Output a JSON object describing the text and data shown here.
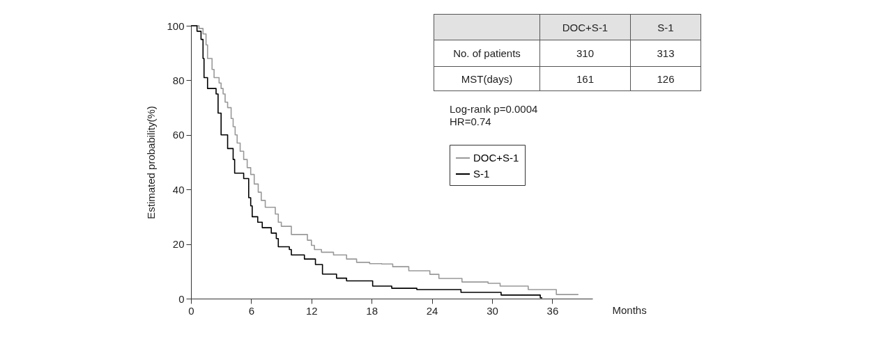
{
  "chart_data": {
    "type": "step",
    "xlabel": "Months",
    "ylabel": "Estimated probability(%)",
    "xlim": [
      0,
      40
    ],
    "ylim": [
      0,
      100
    ],
    "xticks": [
      0,
      6,
      12,
      18,
      24,
      30,
      36
    ],
    "yticks": [
      0,
      20,
      40,
      60,
      80,
      100
    ],
    "grid": false,
    "legend": "right",
    "series": [
      {
        "name": "DOC+S-1",
        "color": "#999999",
        "x": [
          0,
          0.8,
          1.2,
          1.5,
          1.65,
          2.1,
          2.3,
          2.8,
          3.0,
          3.2,
          3.4,
          3.65,
          4.0,
          4.2,
          4.4,
          4.6,
          4.9,
          5.25,
          5.6,
          5.95,
          6.3,
          6.7,
          7.0,
          7.4,
          8.4,
          8.7,
          9.0,
          10.0,
          11.6,
          12.0,
          12.3,
          13.0,
          14.2,
          15.5,
          16.5,
          17.8,
          19.0,
          20.1,
          21.7,
          23.8,
          24.7,
          27.0,
          29.6,
          30.8,
          33.6,
          36.4,
          38.6
        ],
        "values": [
          100,
          99,
          97,
          93,
          88,
          84,
          81,
          79,
          77,
          75,
          72,
          70,
          66,
          63,
          60,
          57,
          54,
          51,
          48,
          45.5,
          42,
          39,
          36,
          33.5,
          31,
          28,
          26.5,
          23.5,
          21.4,
          19.5,
          18,
          17,
          16,
          14.5,
          13.3,
          12.8,
          12.7,
          11.7,
          10.2,
          8.9,
          7.4,
          6.1,
          5.6,
          4.6,
          3.3,
          1.5,
          1.5
        ]
      },
      {
        "name": "S-1",
        "color": "#000000",
        "x": [
          0,
          0.6,
          1.0,
          1.2,
          1.3,
          1.65,
          2.5,
          2.7,
          3.0,
          3.65,
          4.2,
          4.35,
          5.25,
          5.75,
          5.95,
          6.1,
          6.65,
          7.1,
          8.0,
          8.5,
          8.7,
          9.8,
          10.0,
          11.3,
          12.4,
          13.1,
          14.5,
          15.5,
          18.1,
          20.0,
          22.5,
          26.9,
          30.9,
          34.8,
          35.0
        ],
        "values": [
          100,
          98,
          95,
          88,
          81,
          77,
          75,
          68,
          60,
          55,
          51,
          46,
          44,
          37,
          34,
          30,
          28,
          26,
          24,
          22,
          19,
          18,
          16,
          14.5,
          12.5,
          9,
          7.5,
          6.5,
          4.6,
          3.8,
          3.3,
          2.3,
          1.3,
          0.3,
          0.3
        ]
      }
    ],
    "annotations": [
      "No. of patients",
      "310",
      "313",
      "MST(days)",
      "161",
      "126",
      "Log-rank   p=0.0004",
      "HR=0.74"
    ]
  }
}
